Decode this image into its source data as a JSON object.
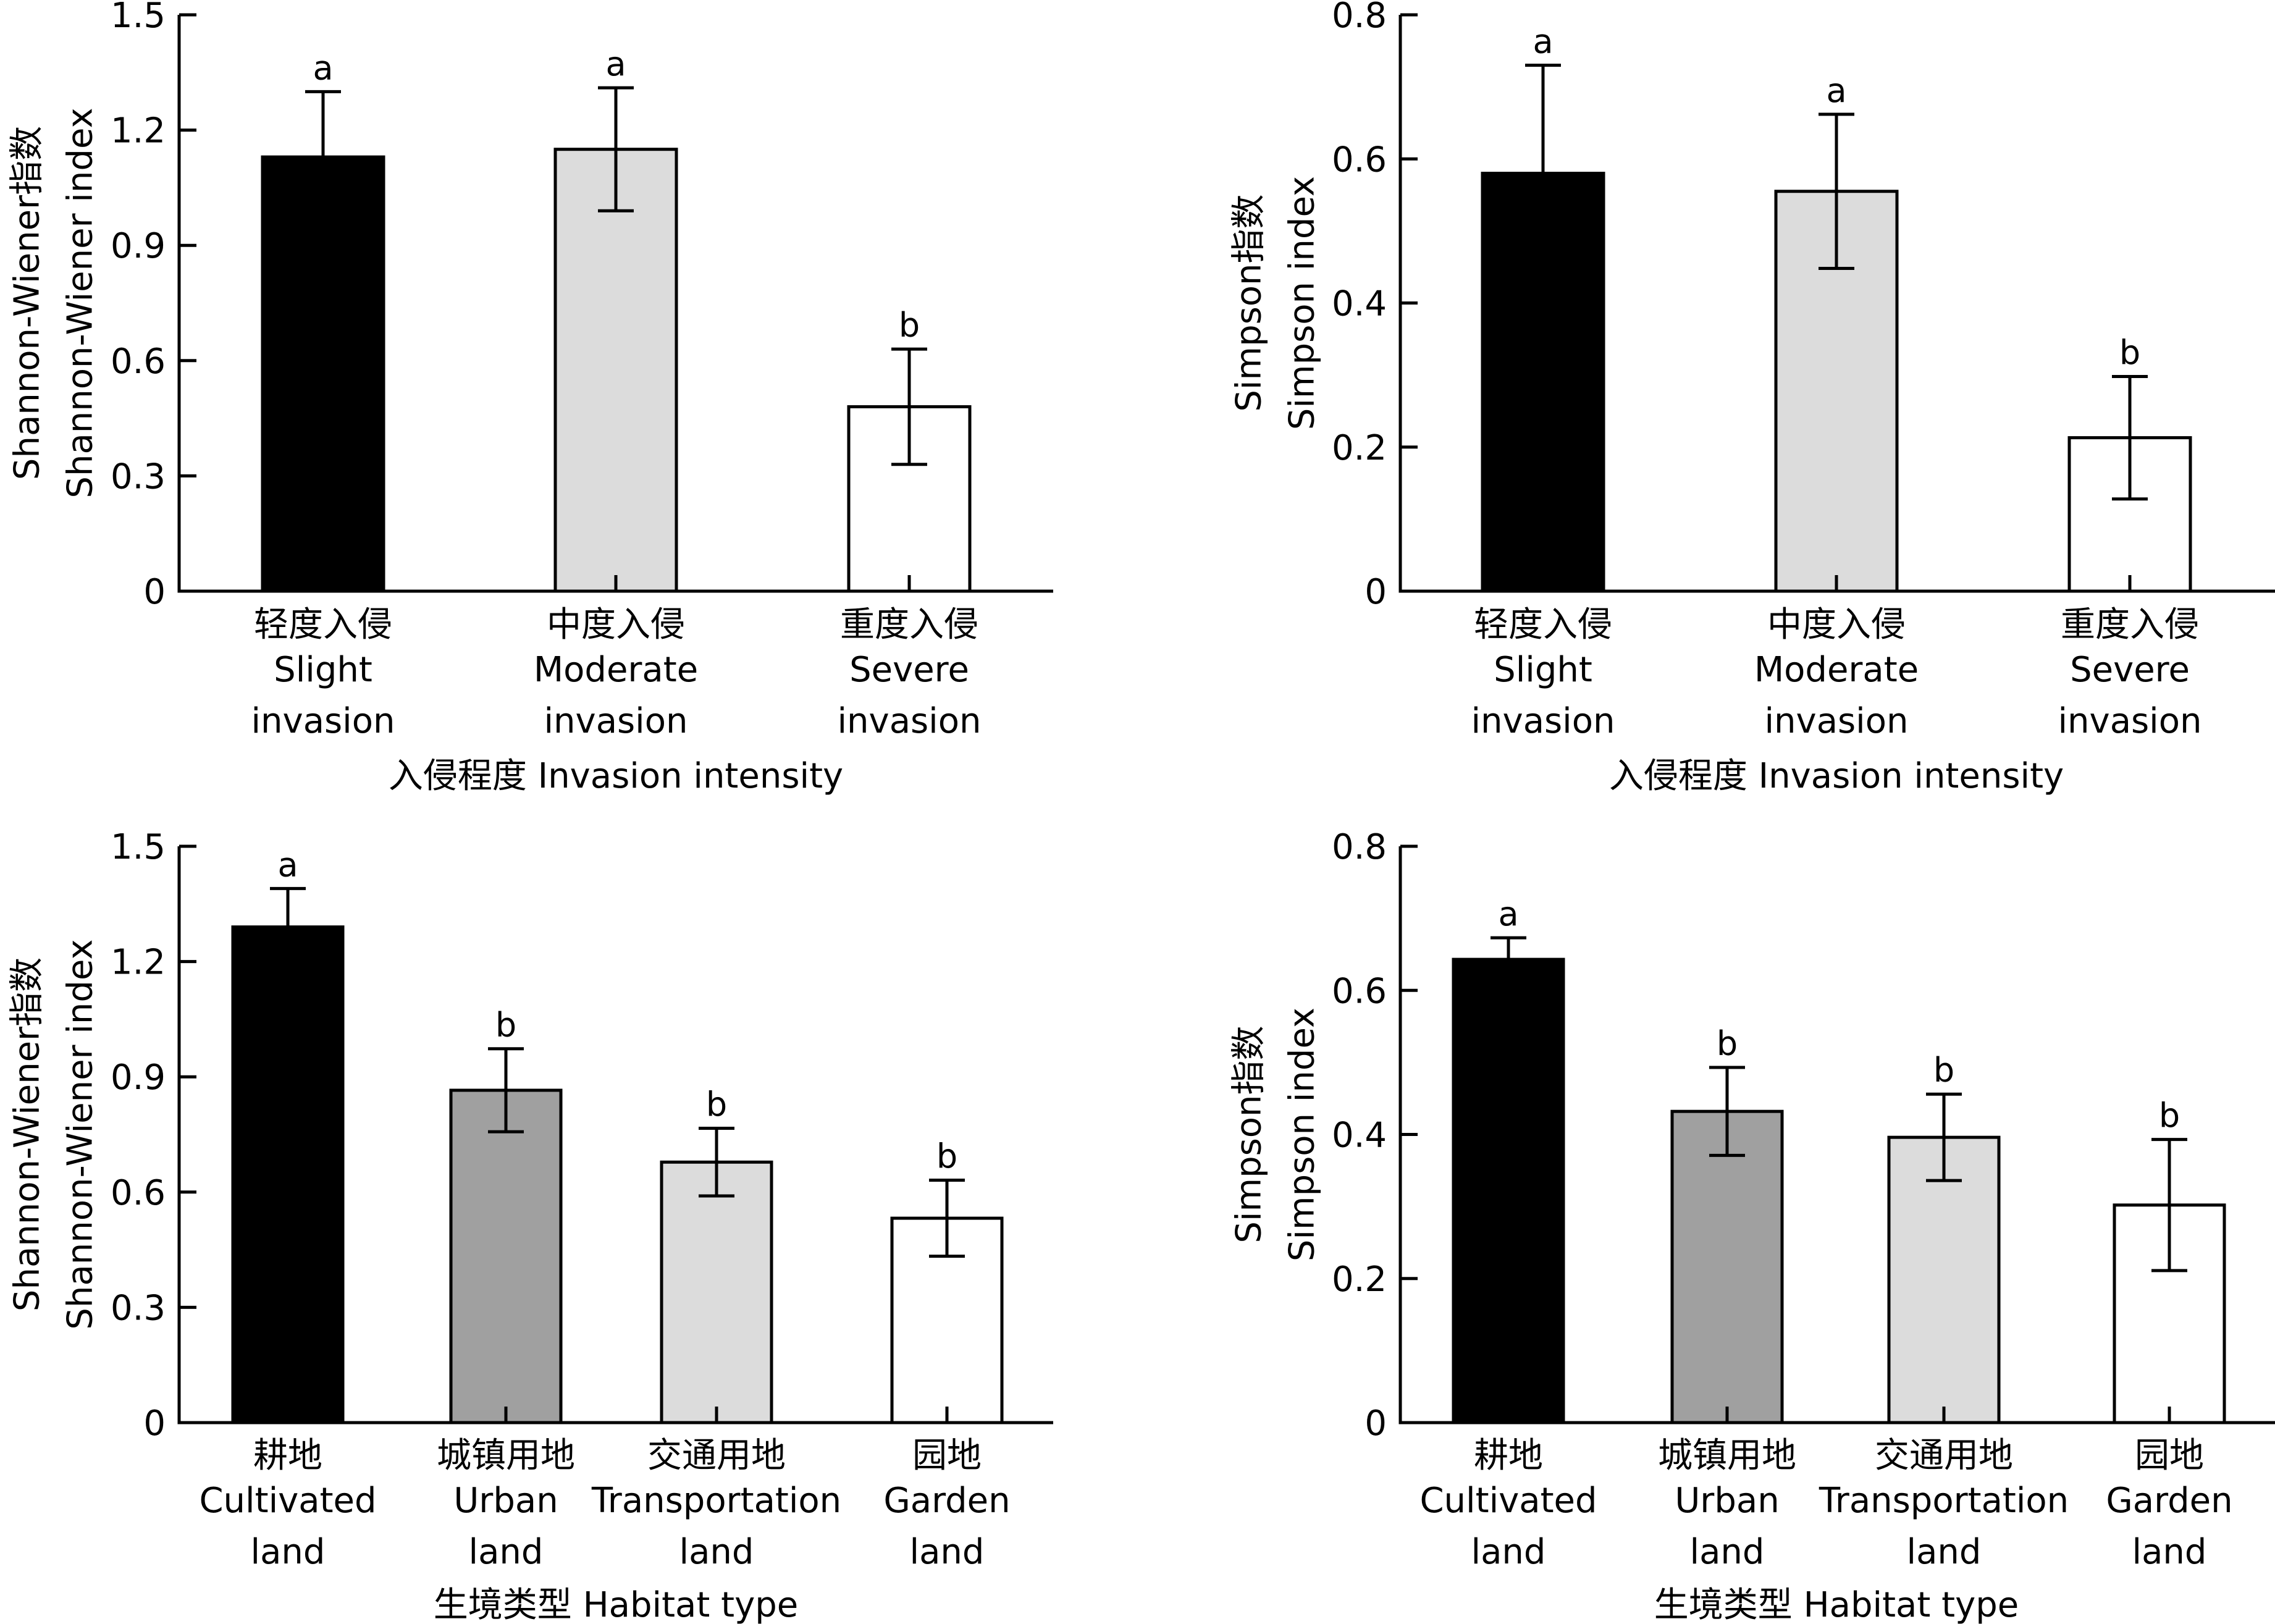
{
  "colors": {
    "axis": "#000000",
    "bar_black": "#000000",
    "bar_dark_gray": "#a0a0a0",
    "bar_light_gray": "#dcdcdc",
    "bar_white": "#ffffff"
  },
  "chart_data": [
    {
      "type": "bar",
      "panel": "top-left",
      "ylabel_cn": "Shannon-Wiener指数",
      "ylabel_en": "Shannon-Wiener index",
      "xlabel": "入侵程度 Invasion intensity",
      "ylim": [
        0,
        1.5
      ],
      "yticks": [
        "0",
        "0.3",
        "0.6",
        "0.9",
        "1.2",
        "1.5"
      ],
      "categories": [
        {
          "cn": "轻度入侵",
          "en1": "Slight",
          "en2": "invasion"
        },
        {
          "cn": "中度入侵",
          "en1": "Moderate",
          "en2": "invasion"
        },
        {
          "cn": "重度入侵",
          "en1": "Severe",
          "en2": "invasion"
        }
      ],
      "values": [
        1.13,
        1.15,
        0.48
      ],
      "errors": [
        0.17,
        0.16,
        0.15
      ],
      "fills": [
        "bar_black",
        "bar_light_gray",
        "bar_white"
      ],
      "significance": [
        "a",
        "a",
        "b"
      ]
    },
    {
      "type": "bar",
      "panel": "top-right",
      "ylabel_cn": "Simpson指数",
      "ylabel_en": "Simpson index",
      "xlabel": "入侵程度 Invasion intensity",
      "ylim": [
        0,
        0.8
      ],
      "yticks": [
        "0",
        "0.2",
        "0.4",
        "0.6",
        "0.8"
      ],
      "categories": [
        {
          "cn": "轻度入侵",
          "en1": "Slight",
          "en2": "invasion"
        },
        {
          "cn": "中度入侵",
          "en1": "Moderate",
          "en2": "invasion"
        },
        {
          "cn": "重度入侵",
          "en1": "Severe",
          "en2": "invasion"
        }
      ],
      "values": [
        0.58,
        0.555,
        0.213
      ],
      "errors": [
        0.15,
        0.107,
        0.085
      ],
      "fills": [
        "bar_black",
        "bar_light_gray",
        "bar_white"
      ],
      "significance": [
        "a",
        "a",
        "b"
      ]
    },
    {
      "type": "bar",
      "panel": "bottom-left",
      "ylabel_cn": "Shannon-Wiener指数",
      "ylabel_en": "Shannon-Wiener index",
      "xlabel": "生境类型 Habitat type",
      "ylim": [
        0,
        1.5
      ],
      "yticks": [
        "0",
        "0.3",
        "0.6",
        "0.9",
        "1.2",
        "1.5"
      ],
      "categories": [
        {
          "cn": "耕地",
          "en1": "Cultivated",
          "en2": "land"
        },
        {
          "cn": "城镇用地",
          "en1": "Urban",
          "en2": "land"
        },
        {
          "cn": "交通用地",
          "en1": "Transportation",
          "en2": "land"
        },
        {
          "cn": "园地",
          "en1": "Garden",
          "en2": "land"
        }
      ],
      "values": [
        1.29,
        0.865,
        0.678,
        0.532
      ],
      "errors": [
        0.1,
        0.108,
        0.088,
        0.099
      ],
      "fills": [
        "bar_black",
        "bar_dark_gray",
        "bar_light_gray",
        "bar_white"
      ],
      "significance": [
        "a",
        "b",
        "b",
        "b"
      ]
    },
    {
      "type": "bar",
      "panel": "bottom-right",
      "ylabel_cn": "Simpson指数",
      "ylabel_en": "Simpson index",
      "xlabel": "生境类型 Habitat type",
      "ylim": [
        0,
        0.8
      ],
      "yticks": [
        "0",
        "0.2",
        "0.4",
        "0.6",
        "0.8"
      ],
      "categories": [
        {
          "cn": "耕地",
          "en1": "Cultivated",
          "en2": "land"
        },
        {
          "cn": "城镇用地",
          "en1": "Urban",
          "en2": "land"
        },
        {
          "cn": "交通用地",
          "en1": "Transportation",
          "en2": "land"
        },
        {
          "cn": "园地",
          "en1": "Garden",
          "en2": "land"
        }
      ],
      "values": [
        0.643,
        0.432,
        0.396,
        0.302
      ],
      "errors": [
        0.03,
        0.061,
        0.06,
        0.091
      ],
      "fills": [
        "bar_black",
        "bar_dark_gray",
        "bar_light_gray",
        "bar_white"
      ],
      "significance": [
        "a",
        "b",
        "b",
        "b"
      ]
    }
  ]
}
